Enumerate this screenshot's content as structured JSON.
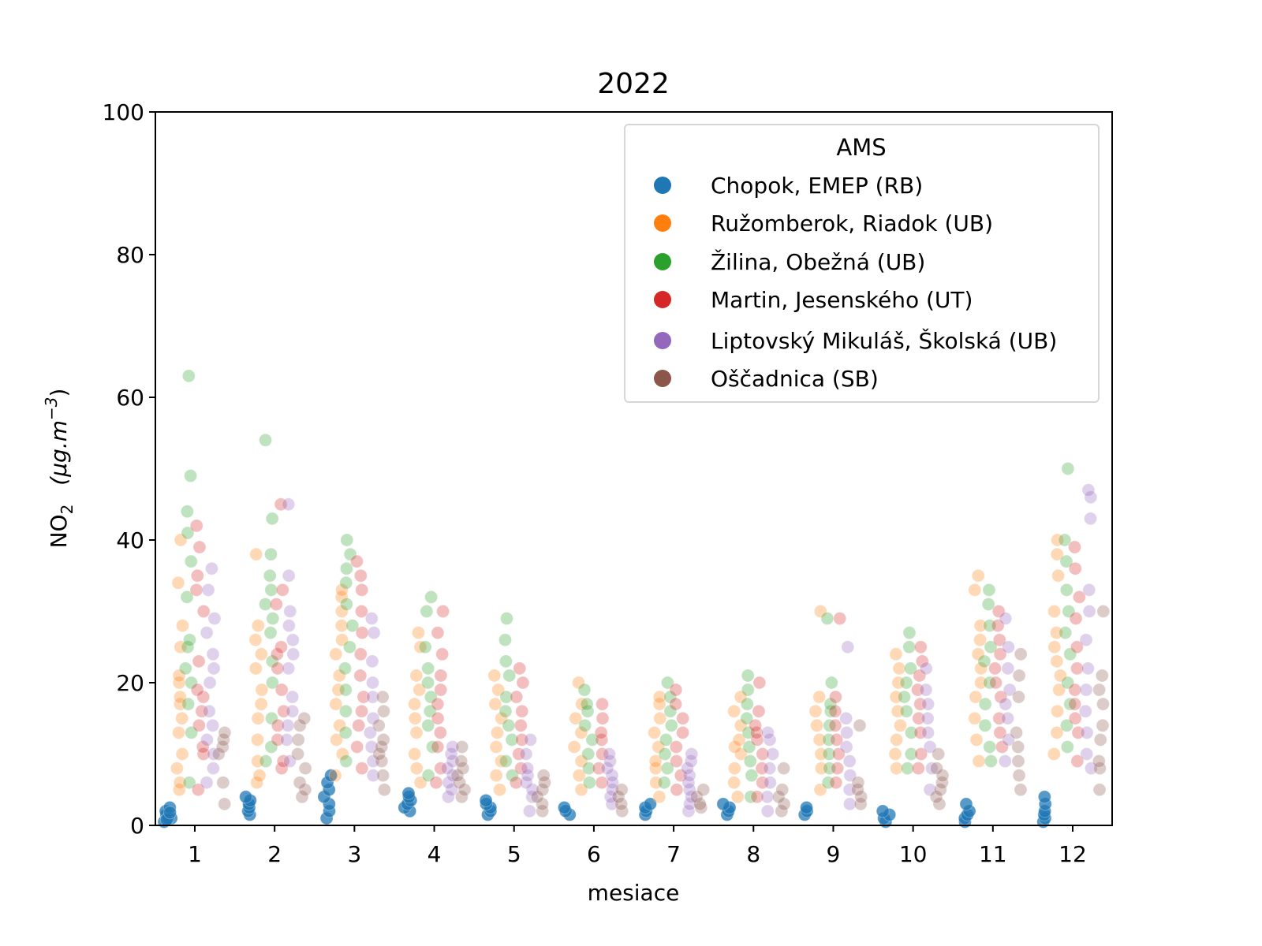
{
  "chart_data": {
    "type": "scatter",
    "subtype": "strip",
    "title": "2022",
    "xlabel": "mesiace",
    "ylabel_main": "NO",
    "ylabel_sub": "2",
    "ylabel_unit": "(μg.m",
    "ylabel_exp": "−3",
    "ylabel_close": ")",
    "ylim": [
      0,
      100
    ],
    "yticks": [
      "0",
      "20",
      "40",
      "60",
      "80",
      "100"
    ],
    "categories": [
      "1",
      "2",
      "3",
      "4",
      "5",
      "6",
      "7",
      "8",
      "9",
      "10",
      "11",
      "12"
    ],
    "legend": {
      "title": "AMS",
      "placement": "top-right"
    },
    "series": [
      {
        "name": "Chopok, EMEP (RB)",
        "color": "#1f77b4",
        "values": [
          [
            0.5,
            1,
            1.5,
            2,
            2.5,
            1,
            0.8,
            1.8
          ],
          [
            1.5,
            2,
            2.5,
            3,
            3.5,
            4
          ],
          [
            1,
            2,
            3,
            4,
            5,
            6,
            7
          ],
          [
            2,
            2.5,
            3,
            3.5,
            4,
            4.5
          ],
          [
            1.5,
            2,
            2.5,
            3,
            3.5
          ],
          [
            1.5,
            2,
            2.5
          ],
          [
            1.5,
            2,
            2.5,
            3
          ],
          [
            1.5,
            2,
            2.5,
            3
          ],
          [
            1.5,
            2,
            2.5
          ],
          [
            0.5,
            1,
            1.5,
            2
          ],
          [
            0.5,
            1,
            1.5,
            2,
            3
          ],
          [
            0.5,
            1,
            1.5,
            2,
            3,
            4
          ]
        ]
      },
      {
        "name": "Ružomberok, Riadok (UB)",
        "color": "#ff7f0e",
        "values": [
          [
            5,
            6,
            8,
            10,
            13,
            15,
            17,
            18,
            20,
            21,
            25,
            28,
            34,
            40
          ],
          [
            6,
            7,
            9,
            12,
            15,
            17,
            19,
            22,
            24,
            26,
            28,
            38
          ],
          [
            7,
            10,
            12,
            14,
            17,
            19,
            21,
            24,
            26,
            28,
            30,
            32,
            33
          ],
          [
            6,
            8,
            10,
            13,
            15,
            17,
            19,
            21,
            25,
            27
          ],
          [
            5,
            7,
            9,
            11,
            13,
            15,
            17,
            19,
            21
          ],
          [
            5,
            7,
            9,
            11,
            13,
            15,
            17,
            20
          ],
          [
            4,
            6,
            8,
            9,
            11,
            13,
            15,
            17,
            18
          ],
          [
            4,
            6,
            8,
            10,
            11,
            12,
            14,
            16,
            18
          ],
          [
            5,
            8,
            10,
            12,
            14,
            16,
            18,
            30
          ],
          [
            8,
            10,
            12,
            14,
            16,
            18,
            20,
            22,
            24
          ],
          [
            9,
            12,
            15,
            18,
            20,
            22,
            24,
            26,
            28,
            33,
            35
          ],
          [
            10,
            13,
            16,
            19,
            21,
            23,
            25,
            27,
            30,
            35,
            38,
            40
          ]
        ]
      },
      {
        "name": "Žilina, Obežná (UB)",
        "color": "#2ca02c",
        "values": [
          [
            6,
            13,
            17,
            20,
            22,
            25,
            26,
            32,
            37,
            41,
            44,
            49,
            63
          ],
          [
            9,
            11,
            15,
            20,
            23,
            27,
            29,
            31,
            33,
            35,
            38,
            43,
            54
          ],
          [
            9,
            13,
            16,
            19,
            22,
            25,
            28,
            31,
            34,
            36,
            38,
            40
          ],
          [
            7,
            11,
            14,
            16,
            18,
            20,
            22,
            25,
            30,
            32
          ],
          [
            7,
            9,
            12,
            14,
            16,
            18,
            21,
            23,
            26,
            29
          ],
          [
            6,
            8,
            10,
            12,
            14,
            16,
            17,
            19
          ],
          [
            6,
            8,
            10,
            12,
            14,
            16,
            18,
            20
          ],
          [
            4,
            7,
            9,
            11,
            13,
            15,
            17,
            19,
            21
          ],
          [
            6,
            8,
            10,
            12,
            14,
            16,
            17,
            20,
            29
          ],
          [
            8,
            10,
            13,
            16,
            18,
            20,
            22,
            25,
            27
          ],
          [
            9,
            11,
            14,
            17,
            20,
            23,
            25,
            28,
            31,
            33
          ],
          [
            11,
            14,
            17,
            20,
            24,
            27,
            30,
            33,
            37,
            40,
            50
          ]
        ]
      },
      {
        "name": "Martin, Jesenského (UT)",
        "color": "#d62728",
        "values": [
          [
            5,
            10,
            11,
            14,
            16,
            18,
            19,
            23,
            30,
            33,
            35,
            39,
            42
          ],
          [
            8,
            9,
            12,
            14,
            16,
            19,
            22,
            24,
            25,
            31,
            33,
            45
          ],
          [
            8,
            11,
            14,
            16,
            18,
            21,
            24,
            27,
            30,
            33,
            35,
            37
          ],
          [
            6,
            8,
            11,
            13,
            15,
            17,
            19,
            21,
            24,
            27,
            30
          ],
          [
            6,
            8,
            10,
            12,
            14,
            16,
            18,
            20,
            22
          ],
          [
            6,
            8,
            10,
            12,
            13,
            15,
            17
          ],
          [
            5,
            7,
            9,
            11,
            13,
            15,
            17,
            19
          ],
          [
            4,
            6,
            8,
            10,
            12,
            13,
            14,
            16,
            20
          ],
          [
            6,
            8,
            10,
            12,
            14,
            16,
            18,
            29
          ],
          [
            8,
            10,
            13,
            15,
            17,
            19,
            21,
            23,
            25
          ],
          [
            11,
            13,
            15,
            18,
            20,
            22,
            24,
            26,
            28,
            30
          ],
          [
            9,
            13,
            15,
            17,
            19,
            22,
            25,
            29,
            32,
            36,
            39
          ]
        ]
      },
      {
        "name": "Liptovský Mikuláš, Školská (UB)",
        "color": "#9467bd",
        "values": [
          [
            6,
            8,
            10,
            12,
            14,
            16,
            20,
            22,
            24,
            27,
            29,
            33,
            36
          ],
          [
            9,
            12,
            14,
            16,
            18,
            22,
            24,
            26,
            28,
            30,
            35,
            45
          ],
          [
            7,
            9,
            11,
            13,
            15,
            18,
            20,
            23,
            27,
            29
          ],
          [
            4,
            5,
            6,
            7,
            8,
            9,
            10,
            11
          ],
          [
            2,
            4,
            5,
            6,
            7,
            8,
            10,
            12
          ],
          [
            3,
            4,
            5,
            6,
            7,
            8,
            9,
            10
          ],
          [
            2,
            3,
            4,
            5,
            6,
            7,
            8,
            9,
            10
          ],
          [
            2,
            4,
            6,
            8,
            10,
            12,
            13
          ],
          [
            3,
            5,
            7,
            9,
            11,
            13,
            15,
            25
          ],
          [
            5,
            8,
            11,
            13,
            15,
            17,
            19,
            22
          ],
          [
            9,
            12,
            15,
            17,
            19,
            22,
            25,
            29
          ],
          [
            8,
            10,
            13,
            16,
            19,
            22,
            26,
            30,
            33,
            43,
            46,
            47
          ]
        ]
      },
      {
        "name": "Oščadnica (SB)",
        "color": "#8c564b",
        "values": [
          [
            3,
            6,
            10,
            11,
            12,
            13
          ],
          [
            4,
            5,
            6,
            8,
            10,
            12,
            14,
            15
          ],
          [
            5,
            7,
            9,
            10,
            11,
            12,
            14,
            16,
            18
          ],
          [
            4,
            5,
            6,
            7,
            8,
            9,
            11
          ],
          [
            2,
            3,
            4,
            5,
            6,
            7
          ],
          [
            2,
            3,
            4,
            5
          ],
          [
            2.5,
            3,
            4,
            5
          ],
          [
            2,
            3,
            4,
            5,
            8
          ],
          [
            3,
            4,
            5,
            6,
            14
          ],
          [
            3,
            4,
            5,
            6,
            7,
            8,
            10
          ],
          [
            5,
            7,
            9,
            11,
            13,
            18,
            21,
            24
          ],
          [
            5,
            8,
            9,
            12,
            14,
            17,
            19,
            21,
            30
          ]
        ]
      }
    ]
  }
}
